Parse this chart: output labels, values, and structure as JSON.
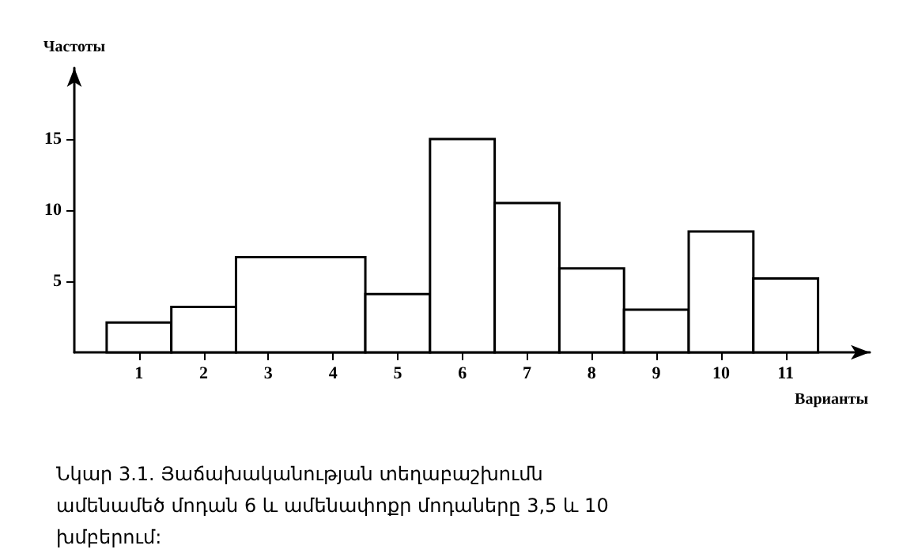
{
  "chart_data": {
    "type": "histogram",
    "bins": [
      0.5,
      1.5,
      2.5,
      4.5,
      5.5,
      6.5,
      7.5,
      8.5,
      9.5,
      10.5,
      11.5
    ],
    "values": [
      2.1,
      3.2,
      6.7,
      4.1,
      15,
      10.5,
      5.9,
      3.0,
      8.5,
      5.2
    ],
    "color": "#ffffff",
    "xlim": [
      0,
      12.3
    ],
    "xticks": [
      1,
      2,
      3,
      4,
      5,
      6,
      7,
      8,
      9,
      10,
      11
    ],
    "ylim": [
      0,
      20
    ],
    "yticks": [
      5,
      10,
      15
    ],
    "xlabel": "Варианты",
    "ylabel": "Частоты",
    "annotations": [
      "Նկար 3.1. Յաճախականության տեղաբաշխումն ամենամեծ մոդան 6 և ամենափոքր մոդաները 3,5 և 10 խմբերում:"
    ]
  }
}
